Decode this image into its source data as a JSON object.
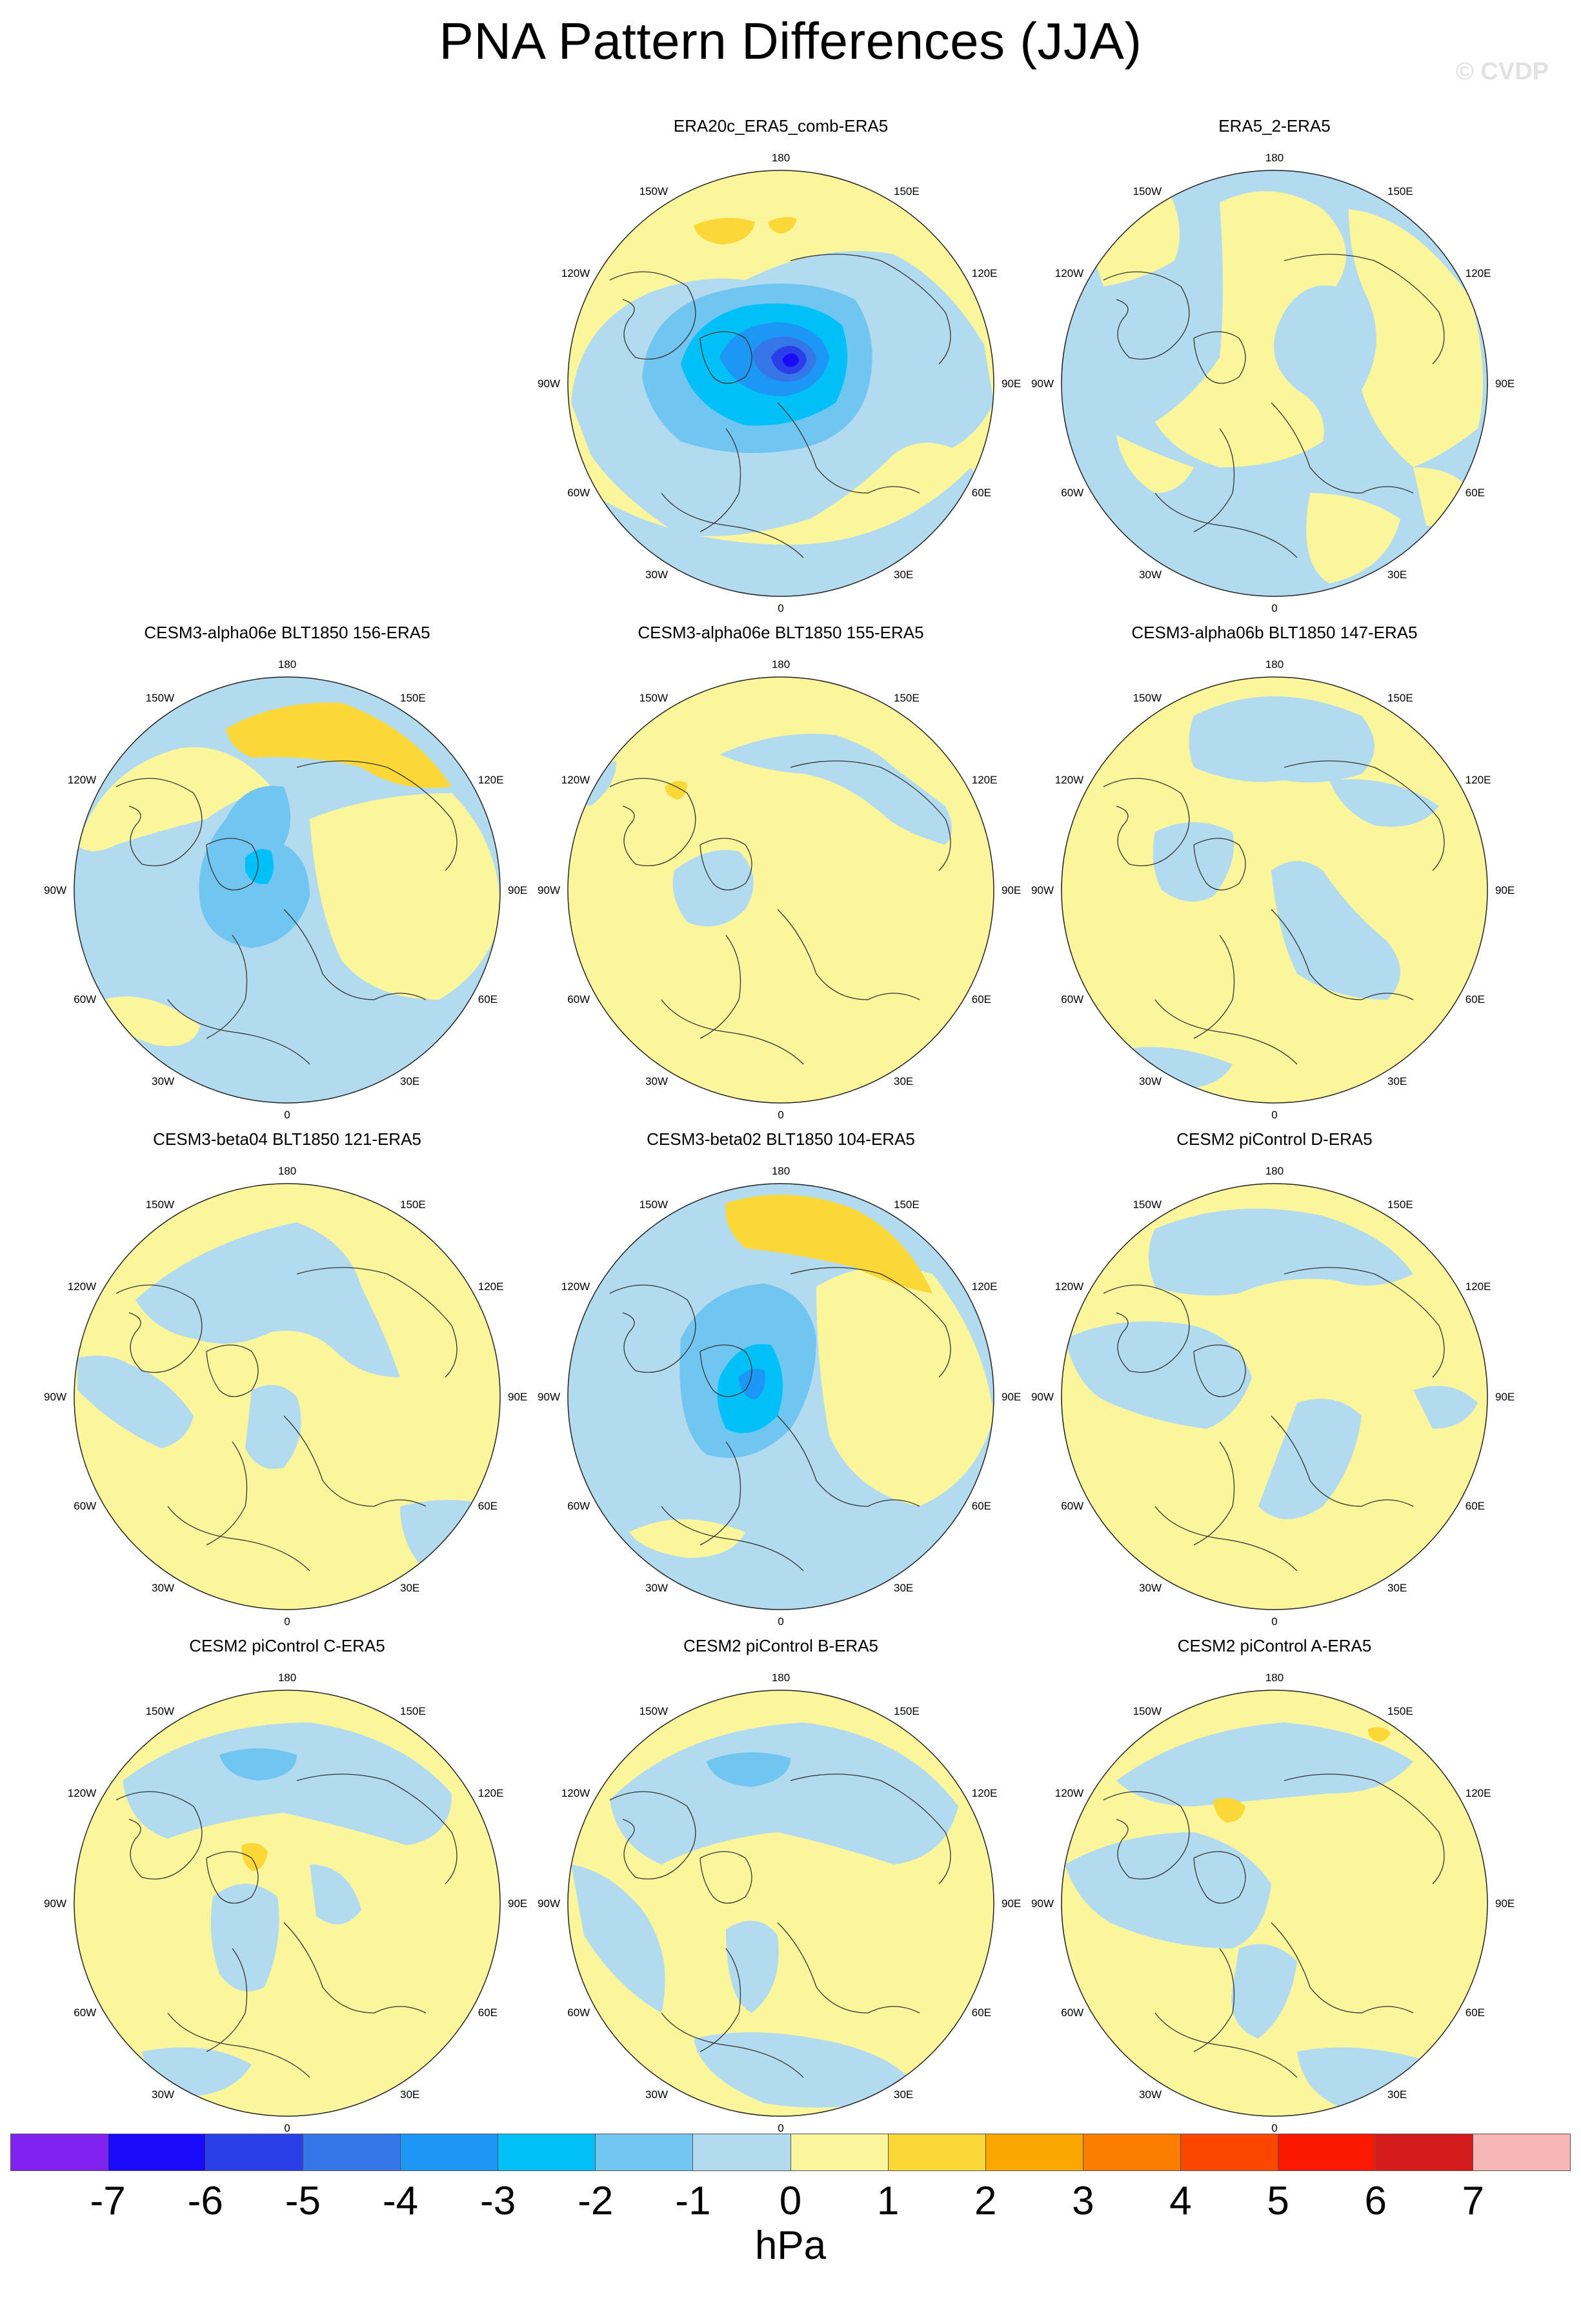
{
  "header": {
    "title": "PNA Pattern Differences (JJA)",
    "credit": "© CVDP"
  },
  "palette": {
    "neg_strong": "#5c20f5",
    "neg_6": "#1a0afa",
    "neg_5": "#2b3fe8",
    "neg_4": "#3576e8",
    "neg_3": "#1c97f5",
    "neg_2": "#00c0f8",
    "neg_1": "#71c6f1",
    "neg_0": "#b2dbf0",
    "pos_0": "#fbf69b",
    "pos_1": "#fcd738",
    "pos_2": "#fba700",
    "pos_3": "#fb7e00",
    "pos_4": "#fb4600",
    "pos_5": "#fa1900",
    "pos_6": "#d41c1c",
    "pos_7": "#f7b6b6",
    "land_outline": "#333333"
  },
  "lon_labels": {
    "top": "180",
    "bottom": "0",
    "left": "90W",
    "right": "90E",
    "nnw": "150W",
    "nne": "150E",
    "wnw": "120W",
    "ene": "120E",
    "wsw": "60W",
    "ese": "60E",
    "ssw": "30W",
    "sse": "30E"
  },
  "panels": [
    {
      "title": "ERA20c_ERA5_comb-ERA5",
      "base": "pos_0",
      "pattern": "era20c"
    },
    {
      "title": "ERA5_2-ERA5",
      "base": "neg_0",
      "pattern": "era5_2"
    },
    {
      "title": "CESM3-alpha06e BLT1850 156-ERA5",
      "base": "neg_0",
      "pattern": "a156"
    },
    {
      "title": "CESM3-alpha06e BLT1850 155-ERA5",
      "base": "pos_0",
      "pattern": "a155"
    },
    {
      "title": "CESM3-alpha06b BLT1850 147-ERA5",
      "base": "pos_0",
      "pattern": "a147"
    },
    {
      "title": "CESM3-beta04 BLT1850 121-ERA5",
      "base": "pos_0",
      "pattern": "b121"
    },
    {
      "title": "CESM3-beta02 BLT1850 104-ERA5",
      "base": "neg_0",
      "pattern": "b104"
    },
    {
      "title": "CESM2 piControl D-ERA5",
      "base": "pos_0",
      "pattern": "pcD"
    },
    {
      "title": "CESM2 piControl C-ERA5",
      "base": "pos_0",
      "pattern": "pcC"
    },
    {
      "title": "CESM2 piControl B-ERA5",
      "base": "pos_0",
      "pattern": "pcB"
    },
    {
      "title": "CESM2 piControl A-ERA5",
      "base": "pos_0",
      "pattern": "pcA"
    }
  ],
  "colorbar": {
    "colors": [
      "#8122f0",
      "#1a0afa",
      "#2b3fe8",
      "#3576e8",
      "#1c97f5",
      "#00c0f8",
      "#71c6f1",
      "#b2dbf0",
      "#fbf69b",
      "#fcd738",
      "#fba700",
      "#fb7e00",
      "#fb4600",
      "#fa1900",
      "#d41c1c",
      "#f7b6b6"
    ],
    "labels": [
      "-7",
      "-6",
      "-5",
      "-4",
      "-3",
      "-2",
      "-1",
      "0",
      "1",
      "2",
      "3",
      "4",
      "5",
      "6",
      "7"
    ],
    "units": "hPa"
  }
}
